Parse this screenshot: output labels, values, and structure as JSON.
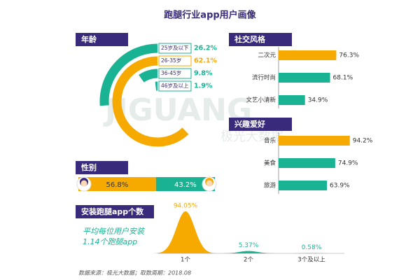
{
  "title": "跑腿行业app用户画像",
  "watermark": [
    "JIGUANG",
    "极光大数据"
  ],
  "source": "数据来源：极光大数据；取数周期：2018.08",
  "chart_data": [
    {
      "type": "radial",
      "title": "年龄",
      "categories": [
        "25岁及以下",
        "26-35岁",
        "36-45岁",
        "46岁及以上"
      ],
      "values": [
        26.2,
        62.1,
        9.8,
        1.9
      ],
      "value_labels": [
        "26.2%",
        "62.1%",
        "9.8%",
        "1.9%"
      ],
      "colors": [
        "#19b394",
        "#f6aa00",
        "#19b394",
        "#19b394"
      ],
      "xlim": [
        0,
        100
      ]
    },
    {
      "type": "stacked",
      "title": "性别",
      "values": [
        56.8,
        43.2
      ],
      "value_labels": [
        "56.8%",
        "43.2%"
      ],
      "colors": [
        "#f6aa00",
        "#19b394"
      ],
      "xlim": [
        0,
        100
      ]
    },
    {
      "type": "hbar",
      "title": "社交风格",
      "categories": [
        "二次元",
        "流行时尚",
        "文艺小清新"
      ],
      "values": [
        76.3,
        68.1,
        34.9
      ],
      "value_labels": [
        "76.3%",
        "68.1%",
        "34.9%"
      ],
      "colors": [
        "#f6aa00",
        "#19b394",
        "#19b394"
      ],
      "xlim": [
        0,
        100
      ]
    },
    {
      "type": "hbar",
      "title": "兴趣爱好",
      "categories": [
        "音乐",
        "美食",
        "旅游"
      ],
      "values": [
        94.2,
        74.9,
        63.9
      ],
      "value_labels": [
        "94.2%",
        "74.9%",
        "63.9%"
      ],
      "colors": [
        "#f6aa00",
        "#19b394",
        "#19b394"
      ],
      "xlim": [
        0,
        100
      ]
    },
    {
      "type": "bell",
      "title": "安装跑腿app个数",
      "annotation": [
        "平均每位用户安装",
        "1.14个跑腿app"
      ],
      "categories": [
        "1个",
        "2个",
        "3个及以上"
      ],
      "values": [
        94.05,
        5.37,
        0.58
      ],
      "value_labels": [
        "94.05%",
        "5.37%",
        "0.58%"
      ],
      "colors": [
        "#f6aa00",
        "#19b394",
        "#19b394"
      ],
      "ylim": [
        0,
        100
      ]
    }
  ]
}
